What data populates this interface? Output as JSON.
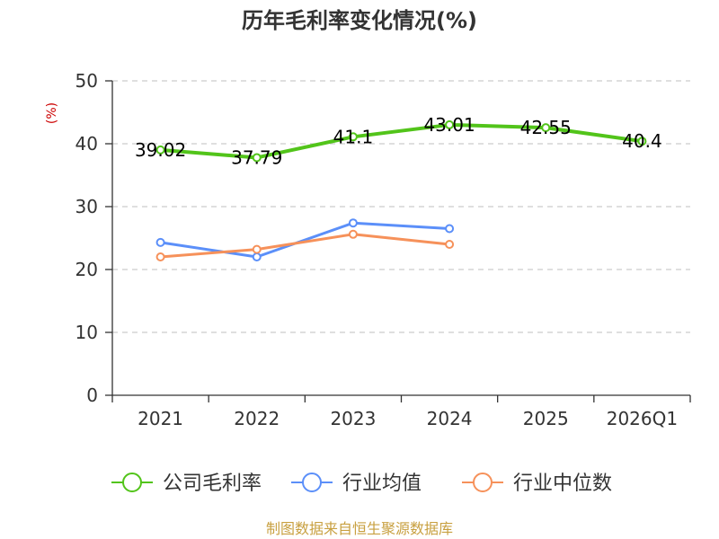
{
  "chart_data": {
    "type": "line",
    "title": "历年毛利率变化情况(%)",
    "ylabel": "(%)",
    "xlabel": "",
    "ylim": [
      0,
      50
    ],
    "yticks": [
      0,
      10,
      20,
      30,
      40,
      50
    ],
    "categories": [
      "2021",
      "2022",
      "2023",
      "2024",
      "2025",
      "2026Q1"
    ],
    "grid": true,
    "legend_position": "bottom",
    "series": [
      {
        "name": "公司毛利率",
        "color": "#52c41a",
        "values": [
          39.02,
          37.79,
          41.1,
          43.01,
          42.55,
          40.4
        ],
        "labels": [
          "39.02",
          "37.79",
          "41.1",
          "43.01",
          "42.55",
          "40.4"
        ]
      },
      {
        "name": "行业均值",
        "color": "#5b8ff9",
        "values": [
          24.3,
          22.0,
          27.4,
          26.5,
          null,
          null
        ]
      },
      {
        "name": "行业中位数",
        "color": "#f6915a",
        "values": [
          22.0,
          23.2,
          25.6,
          24.0,
          null,
          null
        ]
      }
    ],
    "source": "制图数据来自恒生聚源数据库",
    "colors": {
      "unit": "#cc0000",
      "source": "#c8a040",
      "grid": "#cccccc",
      "axis": "#333333"
    }
  }
}
